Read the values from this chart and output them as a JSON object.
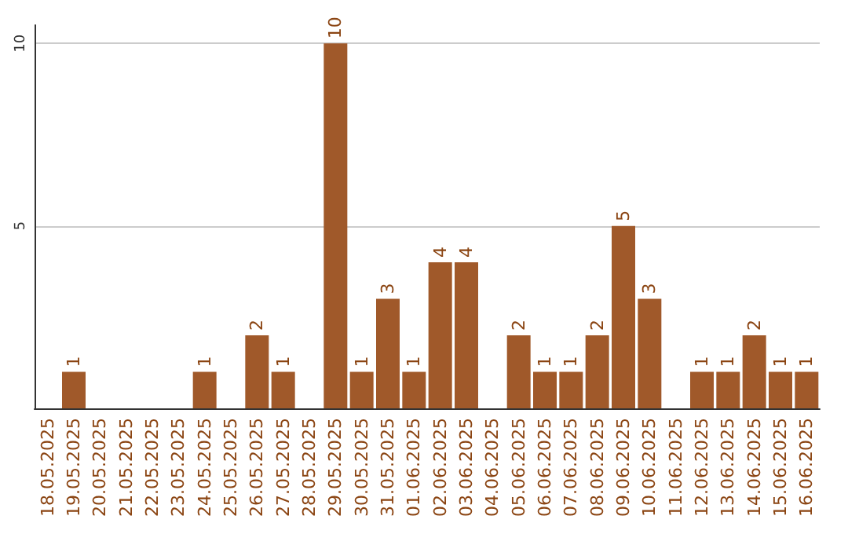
{
  "chart_data": {
    "type": "bar",
    "categories": [
      "18.05.2025",
      "19.05.2025",
      "20.05.2025",
      "21.05.2025",
      "22.05.2025",
      "23.05.2025",
      "24.05.2025",
      "25.05.2025",
      "26.05.2025",
      "27.05.2025",
      "28.05.2025",
      "29.05.2025",
      "30.05.2025",
      "31.05.2025",
      "01.06.2025",
      "02.06.2025",
      "03.06.2025",
      "04.06.2025",
      "05.06.2025",
      "06.06.2025",
      "07.06.2025",
      "08.06.2025",
      "09.06.2025",
      "10.06.2025",
      "11.06.2025",
      "12.06.2025",
      "13.06.2025",
      "14.06.2025",
      "15.06.2025",
      "16.06.2025"
    ],
    "values": [
      0,
      1,
      0,
      0,
      0,
      0,
      1,
      0,
      2,
      1,
      0,
      10,
      1,
      3,
      1,
      4,
      4,
      0,
      2,
      1,
      1,
      2,
      5,
      3,
      0,
      1,
      1,
      2,
      1,
      1
    ],
    "value_labels": [
      null,
      "1",
      null,
      null,
      null,
      null,
      "1",
      null,
      "2",
      "1",
      null,
      "10",
      "1",
      "3",
      "1",
      "4",
      "4",
      null,
      "2",
      "1",
      "1",
      "2",
      "5",
      "3",
      null,
      "1",
      "1",
      "2",
      "1",
      "1"
    ],
    "color": "#a0592a",
    "ylim": [
      0,
      10.5
    ],
    "yticks": [
      5,
      10
    ],
    "grid": "y"
  }
}
